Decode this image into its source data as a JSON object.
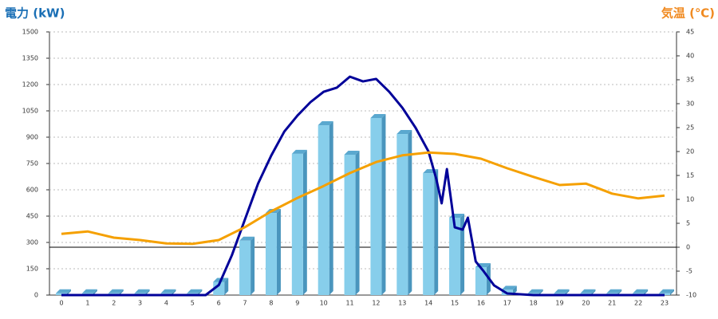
{
  "chart_data": {
    "type": "combo",
    "y_title": "電力 (kW)",
    "y2_title": "気温 (℃)",
    "categories": [
      "0",
      "1",
      "2",
      "3",
      "4",
      "5",
      "6",
      "7",
      "8",
      "9",
      "10",
      "11",
      "12",
      "13",
      "14",
      "15",
      "16",
      "17",
      "18",
      "19",
      "20",
      "21",
      "22",
      "23"
    ],
    "ylim": [
      0,
      1500
    ],
    "yticks": [
      0,
      150,
      300,
      450,
      600,
      750,
      900,
      1050,
      1200,
      1350,
      1500
    ],
    "y2lim": [
      -10,
      45
    ],
    "y2ticks": [
      -10,
      -5,
      0,
      5,
      10,
      15,
      20,
      25,
      30,
      35,
      40,
      45
    ],
    "y2_baseline": 0,
    "grid": true,
    "bars": {
      "color": "#87ceeb",
      "values": [
        10,
        10,
        10,
        10,
        10,
        10,
        75,
        310,
        468,
        805,
        968,
        800,
        1009,
        918,
        695,
        441,
        159,
        30,
        10,
        10,
        10,
        10,
        10,
        10
      ]
    },
    "series": [
      {
        "type": "line",
        "color": "#000099",
        "x": [
          0,
          1,
          2,
          3,
          4,
          5,
          5.5,
          6,
          6.5,
          7,
          7.5,
          8,
          8.5,
          9,
          9.5,
          10,
          10.5,
          11,
          11.5,
          12,
          12.5,
          13,
          13.5,
          14,
          14.3,
          14.5,
          14.7,
          15,
          15.3,
          15.5,
          15.8,
          16.1,
          16.5,
          17,
          18,
          19,
          20,
          21,
          22,
          23
        ],
        "values": [
          0,
          0,
          0,
          0,
          0,
          0,
          0,
          57,
          227,
          432,
          636,
          795,
          932,
          1023,
          1100,
          1159,
          1182,
          1245,
          1218,
          1232,
          1159,
          1068,
          955,
          818,
          659,
          523,
          718,
          386,
          373,
          441,
          191,
          136,
          55,
          9,
          0,
          0,
          0,
          0,
          0,
          0
        ]
      },
      {
        "type": "line",
        "axis": "y2",
        "color": "#f5a000",
        "values": [
          2.8,
          3.3,
          2,
          1.5,
          0.8,
          0.7,
          1.5,
          4.2,
          7.5,
          10.3,
          12.8,
          15.5,
          17.8,
          19.2,
          19.8,
          19.5,
          18.5,
          16.5,
          14.7,
          13,
          13.3,
          11.2,
          10.2,
          10.8
        ]
      }
    ]
  }
}
